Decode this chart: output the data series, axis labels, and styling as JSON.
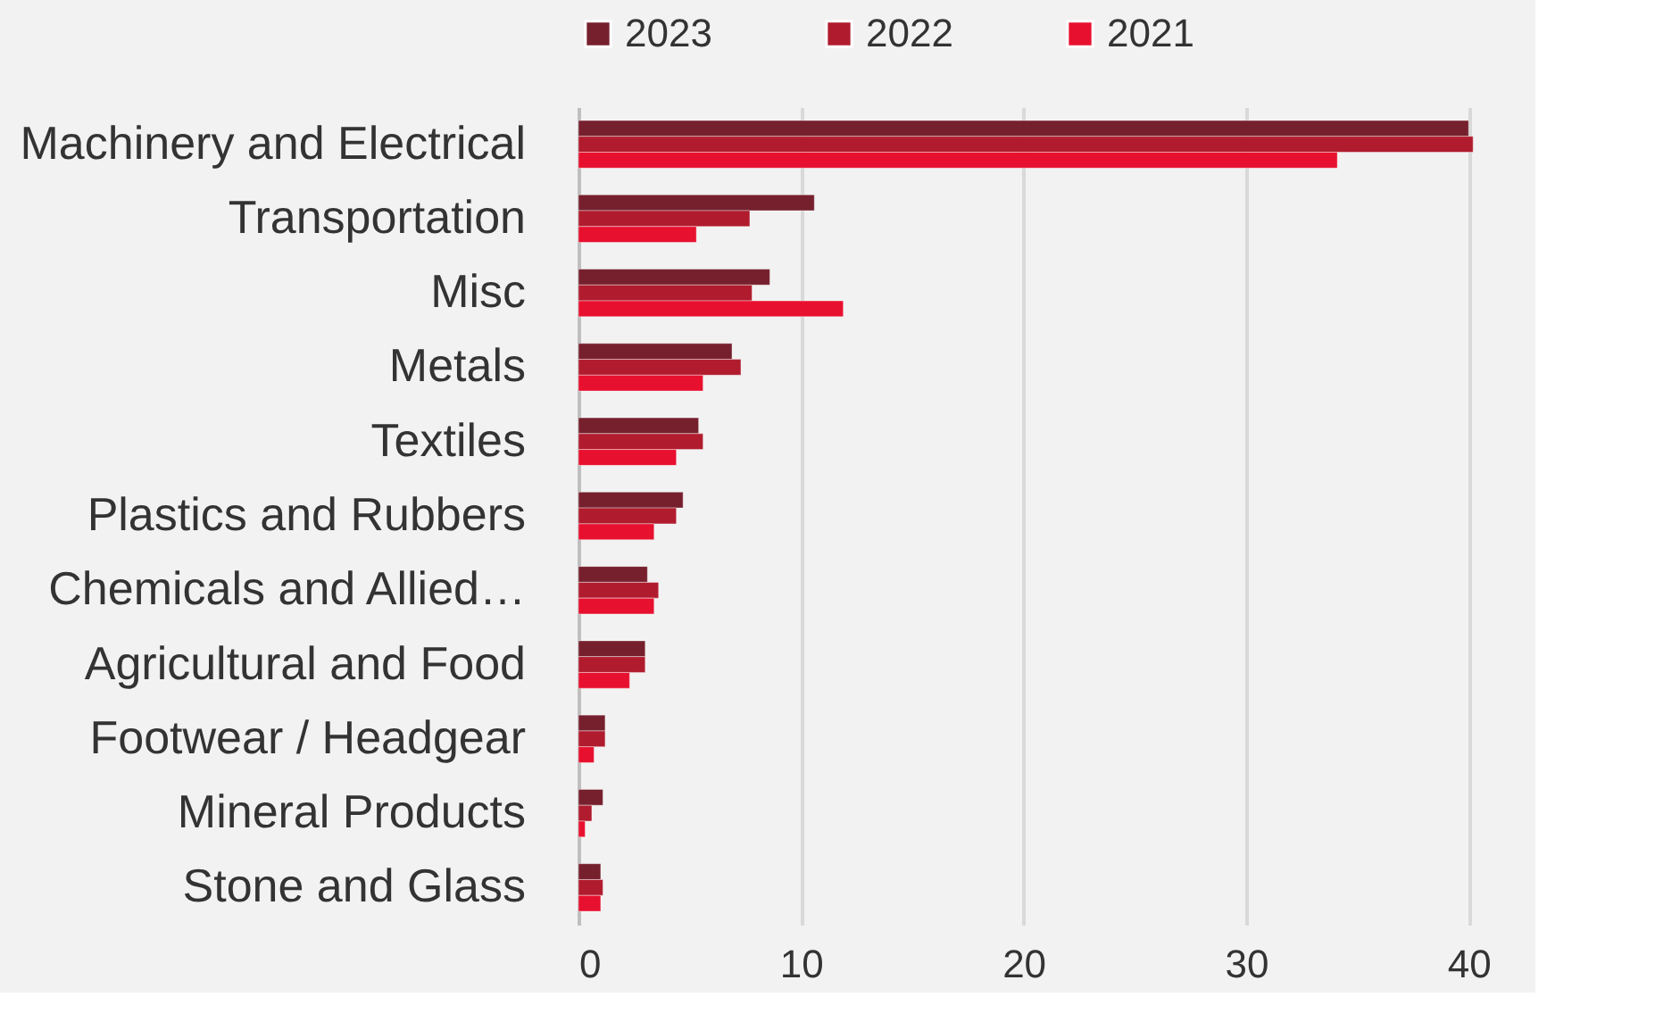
{
  "chart_data": {
    "type": "bar",
    "orientation": "horizontal",
    "categories": [
      "Machinery and Electrical",
      "Transportation",
      "Misc",
      "Metals",
      "Textiles",
      "Plastics and Rubbers",
      "Chemicals and Allied…",
      "Agricultural and Food",
      "Footwear / Headgear",
      "Mineral Products",
      "Stone and Glass"
    ],
    "series": [
      {
        "name": "2023",
        "color": "#76202e",
        "values": [
          40.0,
          10.6,
          8.6,
          6.9,
          5.4,
          4.7,
          3.1,
          3.0,
          1.2,
          1.1,
          1.0
        ]
      },
      {
        "name": "2022",
        "color": "#b01c2e",
        "values": [
          40.2,
          7.7,
          7.8,
          7.3,
          5.6,
          4.4,
          3.6,
          3.0,
          1.2,
          0.6,
          1.1
        ]
      },
      {
        "name": "2021",
        "color": "#e8102f",
        "values": [
          34.1,
          5.3,
          11.9,
          5.6,
          4.4,
          3.4,
          3.4,
          2.3,
          0.7,
          0.3,
          1.0
        ]
      }
    ],
    "xlim": [
      0,
      43
    ],
    "xticks": [
      0,
      10,
      20,
      30,
      40
    ],
    "grid": "x",
    "legend": "top"
  }
}
